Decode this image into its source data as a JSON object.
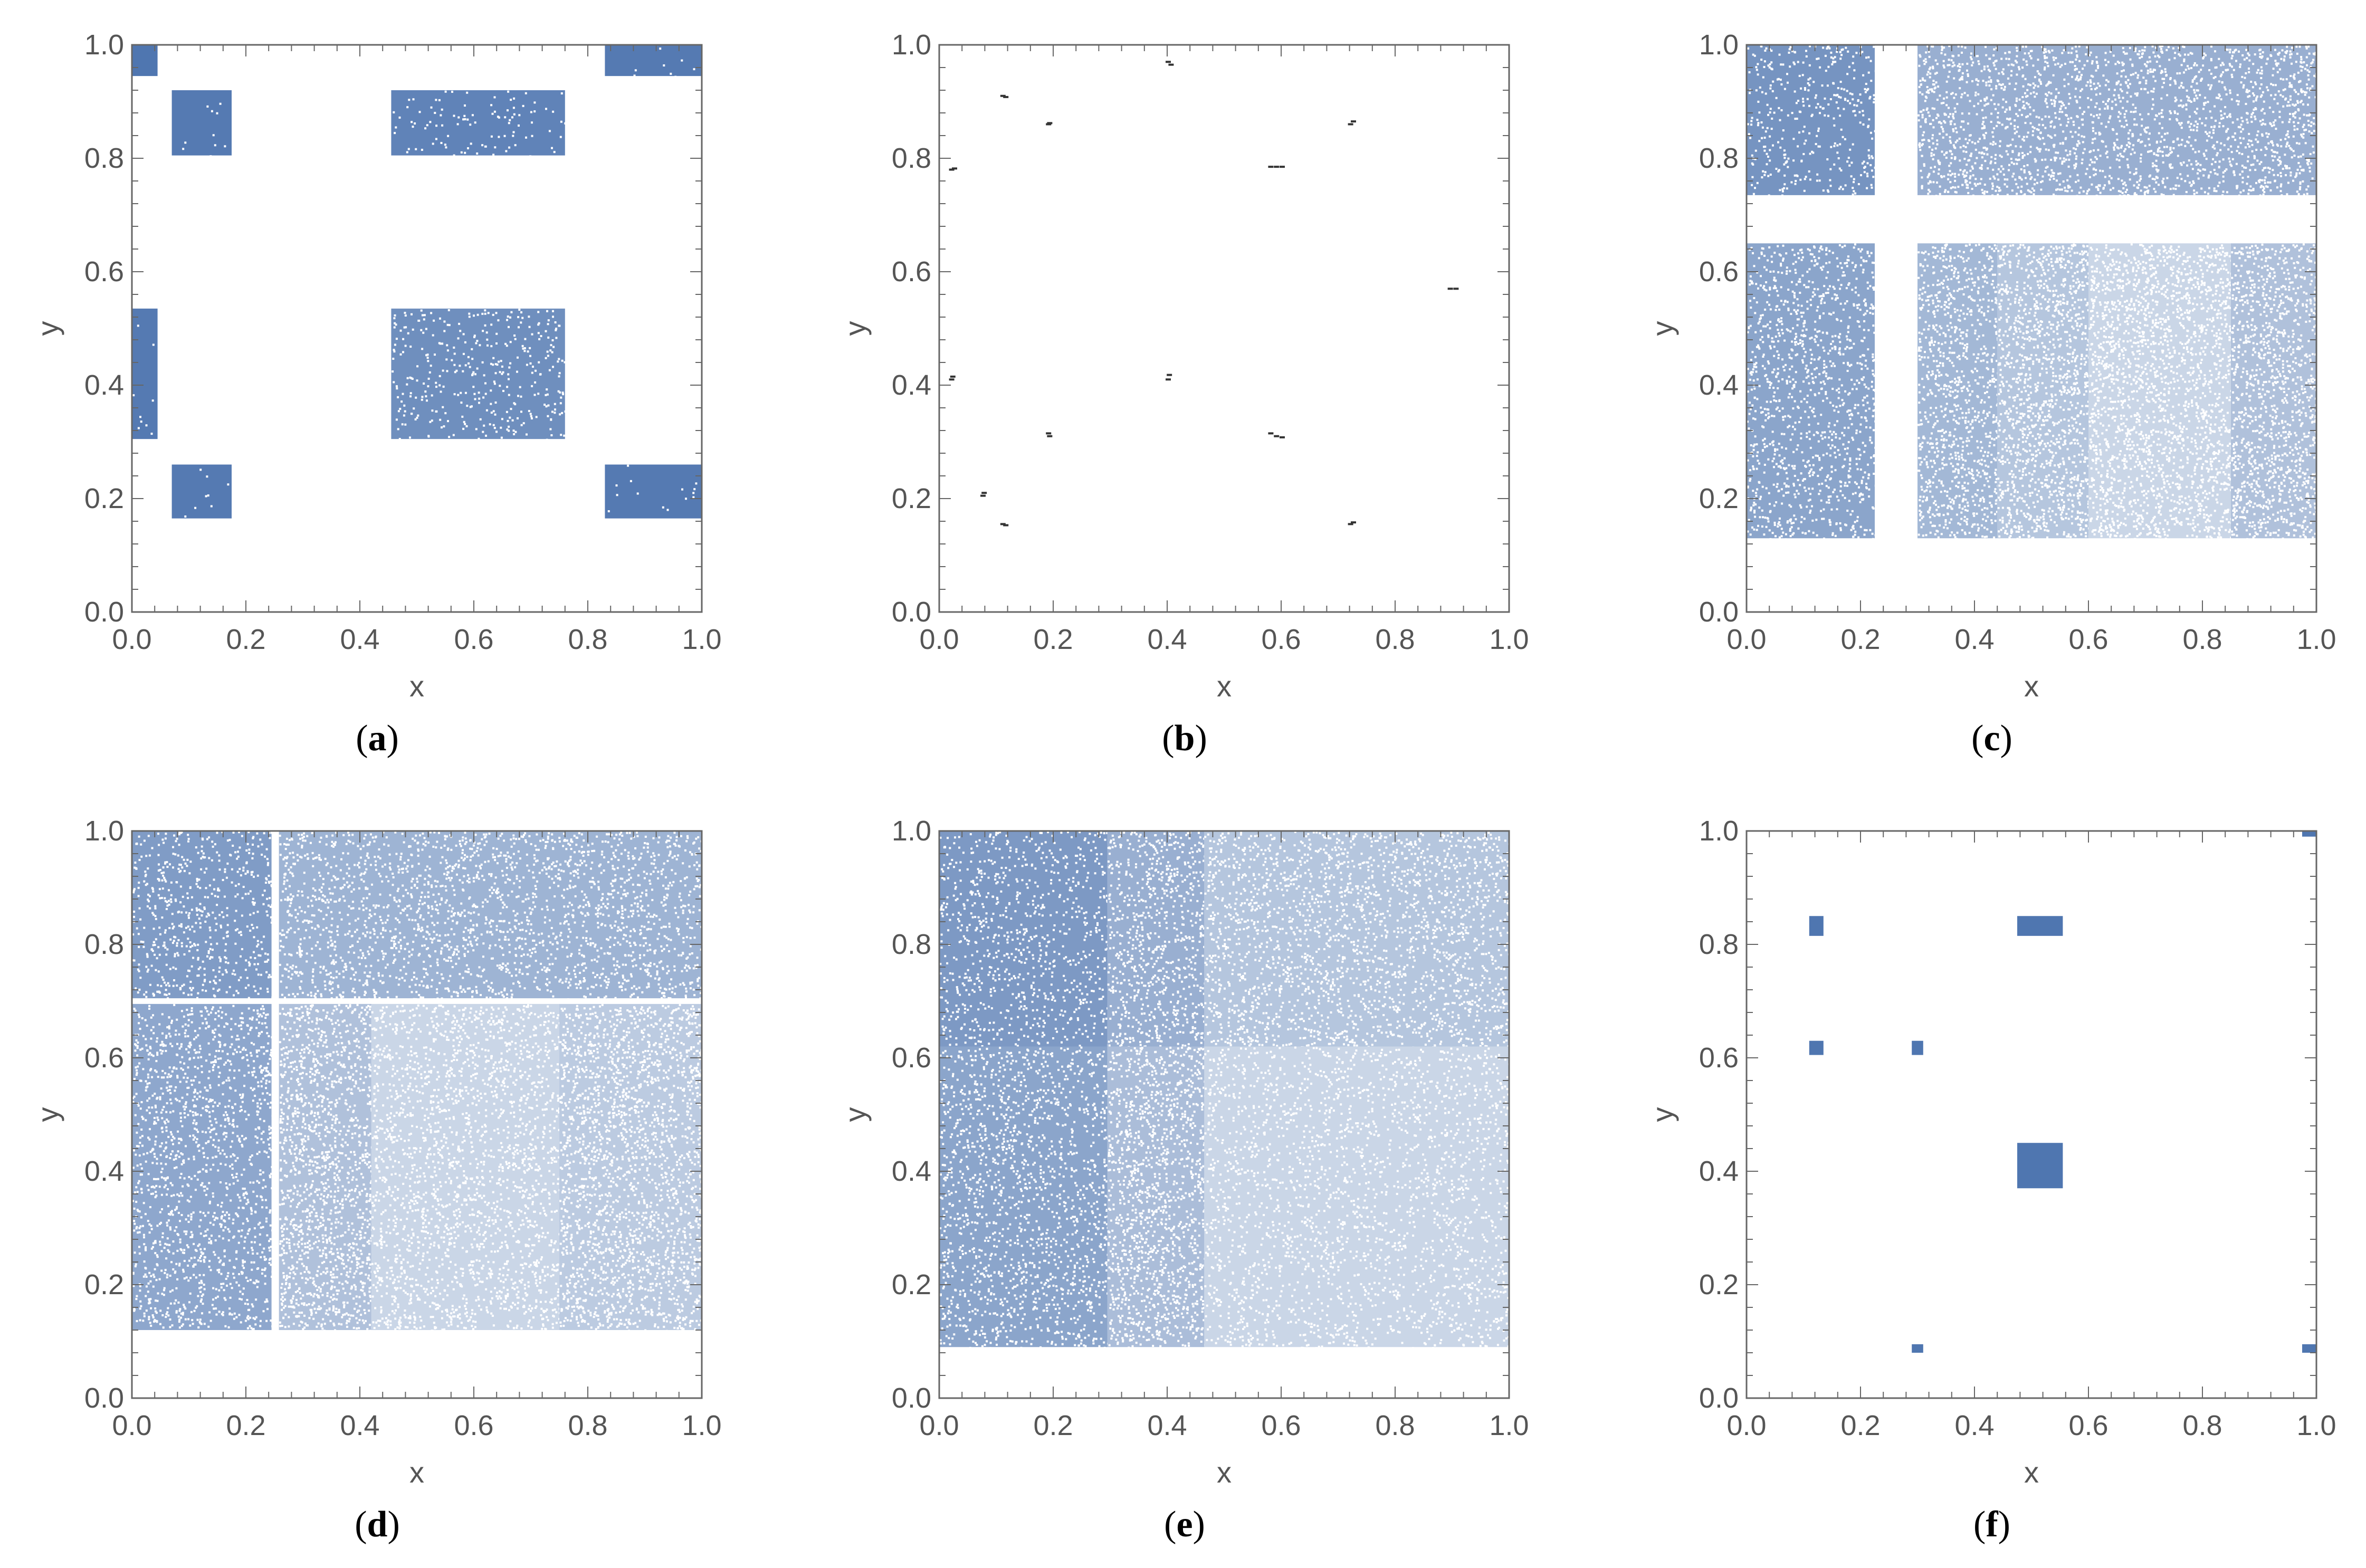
{
  "figure": {
    "point_color": "#4f76b0",
    "axis_color": "#666666",
    "tick_label_color": "#555555",
    "panels": [
      {
        "caption_letter": "a"
      },
      {
        "caption_letter": "b"
      },
      {
        "caption_letter": "c"
      },
      {
        "caption_letter": "d"
      },
      {
        "caption_letter": "e"
      },
      {
        "caption_letter": "f"
      }
    ]
  },
  "chart_data": [
    {
      "type": "scatter",
      "caption": "(a)",
      "xlabel": "x",
      "ylabel": "y",
      "xlim": [
        0,
        1
      ],
      "ylim": [
        0,
        1
      ],
      "xticks": [
        "0.0",
        "0.2",
        "0.4",
        "0.6",
        "0.8",
        "1.0"
      ],
      "yticks": [
        "0.0",
        "0.2",
        "0.4",
        "0.6",
        "0.8",
        "1.0"
      ],
      "regions": [
        {
          "x": [
            0.0,
            0.045
          ],
          "y": [
            0.945,
            1.0
          ],
          "fill": 1.0
        },
        {
          "x": [
            0.07,
            0.175
          ],
          "y": [
            0.805,
            0.92
          ],
          "fill": 0.97
        },
        {
          "x": [
            0.455,
            0.76
          ],
          "y": [
            0.805,
            0.92
          ],
          "fill": 0.9
        },
        {
          "x": [
            0.83,
            1.0
          ],
          "y": [
            0.945,
            1.0
          ],
          "fill": 0.97
        },
        {
          "x": [
            0.0,
            0.045
          ],
          "y": [
            0.305,
            0.535
          ],
          "fill": 0.97
        },
        {
          "x": [
            0.455,
            0.76
          ],
          "y": [
            0.305,
            0.535
          ],
          "fill": 0.82
        },
        {
          "x": [
            0.07,
            0.175
          ],
          "y": [
            0.165,
            0.26
          ],
          "fill": 0.97
        },
        {
          "x": [
            0.83,
            1.0
          ],
          "y": [
            0.165,
            0.26
          ],
          "fill": 0.97
        }
      ]
    },
    {
      "type": "scatter",
      "caption": "(b)",
      "xlabel": "x",
      "ylabel": "y",
      "xlim": [
        0,
        1
      ],
      "ylim": [
        0,
        1
      ],
      "xticks": [
        "0.0",
        "0.2",
        "0.4",
        "0.6",
        "0.8",
        "1.0"
      ],
      "yticks": [
        "0.0",
        "0.2",
        "0.4",
        "0.6",
        "0.8",
        "1.0"
      ],
      "points": [
        [
          0.4,
          0.97
        ],
        [
          0.405,
          0.965
        ],
        [
          0.11,
          0.91
        ],
        [
          0.115,
          0.908
        ],
        [
          0.19,
          0.86
        ],
        [
          0.192,
          0.862
        ],
        [
          0.72,
          0.86
        ],
        [
          0.725,
          0.865
        ],
        [
          0.02,
          0.78
        ],
        [
          0.025,
          0.782
        ],
        [
          0.58,
          0.785
        ],
        [
          0.59,
          0.785
        ],
        [
          0.6,
          0.785
        ],
        [
          0.895,
          0.57
        ],
        [
          0.905,
          0.57
        ],
        [
          0.02,
          0.41
        ],
        [
          0.022,
          0.415
        ],
        [
          0.4,
          0.41
        ],
        [
          0.402,
          0.418
        ],
        [
          0.19,
          0.315
        ],
        [
          0.192,
          0.31
        ],
        [
          0.58,
          0.315
        ],
        [
          0.59,
          0.31
        ],
        [
          0.6,
          0.308
        ],
        [
          0.075,
          0.205
        ],
        [
          0.077,
          0.21
        ],
        [
          0.11,
          0.155
        ],
        [
          0.115,
          0.153
        ],
        [
          0.72,
          0.155
        ],
        [
          0.725,
          0.158
        ]
      ]
    },
    {
      "type": "scatter",
      "caption": "(c)",
      "xlabel": "x",
      "ylabel": "y",
      "xlim": [
        0,
        1
      ],
      "ylim": [
        0,
        1
      ],
      "xticks": [
        "0.0",
        "0.2",
        "0.4",
        "0.6",
        "0.8",
        "1.0"
      ],
      "yticks": [
        "0.0",
        "0.2",
        "0.4",
        "0.6",
        "0.8",
        "1.0"
      ],
      "regions": [
        {
          "x": [
            0.0,
            0.225
          ],
          "y": [
            0.735,
            1.0
          ],
          "fill": 0.78
        },
        {
          "x": [
            0.3,
            1.0
          ],
          "y": [
            0.735,
            1.0
          ],
          "fill": 0.58
        },
        {
          "x": [
            0.0,
            0.225
          ],
          "y": [
            0.13,
            0.65
          ],
          "fill": 0.66
        },
        {
          "x": [
            0.3,
            0.44
          ],
          "y": [
            0.13,
            0.65
          ],
          "fill": 0.52
        },
        {
          "x": [
            0.44,
            0.6
          ],
          "y": [
            0.13,
            0.65
          ],
          "fill": 0.42
        },
        {
          "x": [
            0.6,
            0.85
          ],
          "y": [
            0.13,
            0.65
          ],
          "fill": 0.3
        },
        {
          "x": [
            0.85,
            1.0
          ],
          "y": [
            0.13,
            0.65
          ],
          "fill": 0.45
        }
      ]
    },
    {
      "type": "scatter",
      "caption": "(d)",
      "xlabel": "x",
      "ylabel": "y",
      "xlim": [
        0,
        1
      ],
      "ylim": [
        0,
        1
      ],
      "xticks": [
        "0.0",
        "0.2",
        "0.4",
        "0.6",
        "0.8",
        "1.0"
      ],
      "yticks": [
        "0.0",
        "0.2",
        "0.4",
        "0.6",
        "0.8",
        "1.0"
      ],
      "regions": [
        {
          "x": [
            0.0,
            0.245
          ],
          "y": [
            0.705,
            1.0
          ],
          "fill": 0.72
        },
        {
          "x": [
            0.258,
            1.0
          ],
          "y": [
            0.705,
            1.0
          ],
          "fill": 0.55
        },
        {
          "x": [
            0.0,
            0.245
          ],
          "y": [
            0.12,
            0.695
          ],
          "fill": 0.64
        },
        {
          "x": [
            0.258,
            0.42
          ],
          "y": [
            0.12,
            0.695
          ],
          "fill": 0.45
        },
        {
          "x": [
            0.42,
            0.75
          ],
          "y": [
            0.12,
            0.695
          ],
          "fill": 0.3
        },
        {
          "x": [
            0.75,
            1.0
          ],
          "y": [
            0.12,
            0.695
          ],
          "fill": 0.38
        }
      ]
    },
    {
      "type": "scatter",
      "caption": "(e)",
      "xlabel": "x",
      "ylabel": "y",
      "xlim": [
        0,
        1
      ],
      "ylim": [
        0,
        1
      ],
      "xticks": [
        "0.0",
        "0.2",
        "0.4",
        "0.6",
        "0.8",
        "1.0"
      ],
      "yticks": [
        "0.0",
        "0.2",
        "0.4",
        "0.6",
        "0.8",
        "1.0"
      ],
      "regions": [
        {
          "x": [
            0.0,
            0.295
          ],
          "y": [
            0.62,
            1.0
          ],
          "fill": 0.74
        },
        {
          "x": [
            0.295,
            0.465
          ],
          "y": [
            0.62,
            1.0
          ],
          "fill": 0.58
        },
        {
          "x": [
            0.465,
            1.0
          ],
          "y": [
            0.62,
            1.0
          ],
          "fill": 0.42
        },
        {
          "x": [
            0.0,
            0.295
          ],
          "y": [
            0.09,
            0.62
          ],
          "fill": 0.66
        },
        {
          "x": [
            0.295,
            0.465
          ],
          "y": [
            0.09,
            0.62
          ],
          "fill": 0.48
        },
        {
          "x": [
            0.465,
            1.0
          ],
          "y": [
            0.09,
            0.62
          ],
          "fill": 0.3
        }
      ]
    },
    {
      "type": "scatter",
      "caption": "(f)",
      "xlabel": "x",
      "ylabel": "y",
      "xlim": [
        0,
        1
      ],
      "ylim": [
        0,
        1
      ],
      "xticks": [
        "0.0",
        "0.2",
        "0.4",
        "0.6",
        "0.8",
        "1.0"
      ],
      "yticks": [
        "0.0",
        "0.2",
        "0.4",
        "0.6",
        "0.8",
        "1.0"
      ],
      "regions": [
        {
          "x": [
            0.975,
            1.0
          ],
          "y": [
            0.99,
            1.0
          ],
          "fill": 1.0
        },
        {
          "x": [
            0.11,
            0.135
          ],
          "y": [
            0.815,
            0.85
          ],
          "fill": 1.0
        },
        {
          "x": [
            0.475,
            0.555
          ],
          "y": [
            0.815,
            0.85
          ],
          "fill": 1.0
        },
        {
          "x": [
            0.11,
            0.135
          ],
          "y": [
            0.605,
            0.63
          ],
          "fill": 1.0
        },
        {
          "x": [
            0.29,
            0.31
          ],
          "y": [
            0.605,
            0.63
          ],
          "fill": 1.0
        },
        {
          "x": [
            0.475,
            0.555
          ],
          "y": [
            0.37,
            0.45
          ],
          "fill": 1.0
        },
        {
          "x": [
            0.29,
            0.31
          ],
          "y": [
            0.08,
            0.095
          ],
          "fill": 1.0
        },
        {
          "x": [
            0.975,
            1.0
          ],
          "y": [
            0.08,
            0.095
          ],
          "fill": 1.0
        }
      ]
    }
  ]
}
